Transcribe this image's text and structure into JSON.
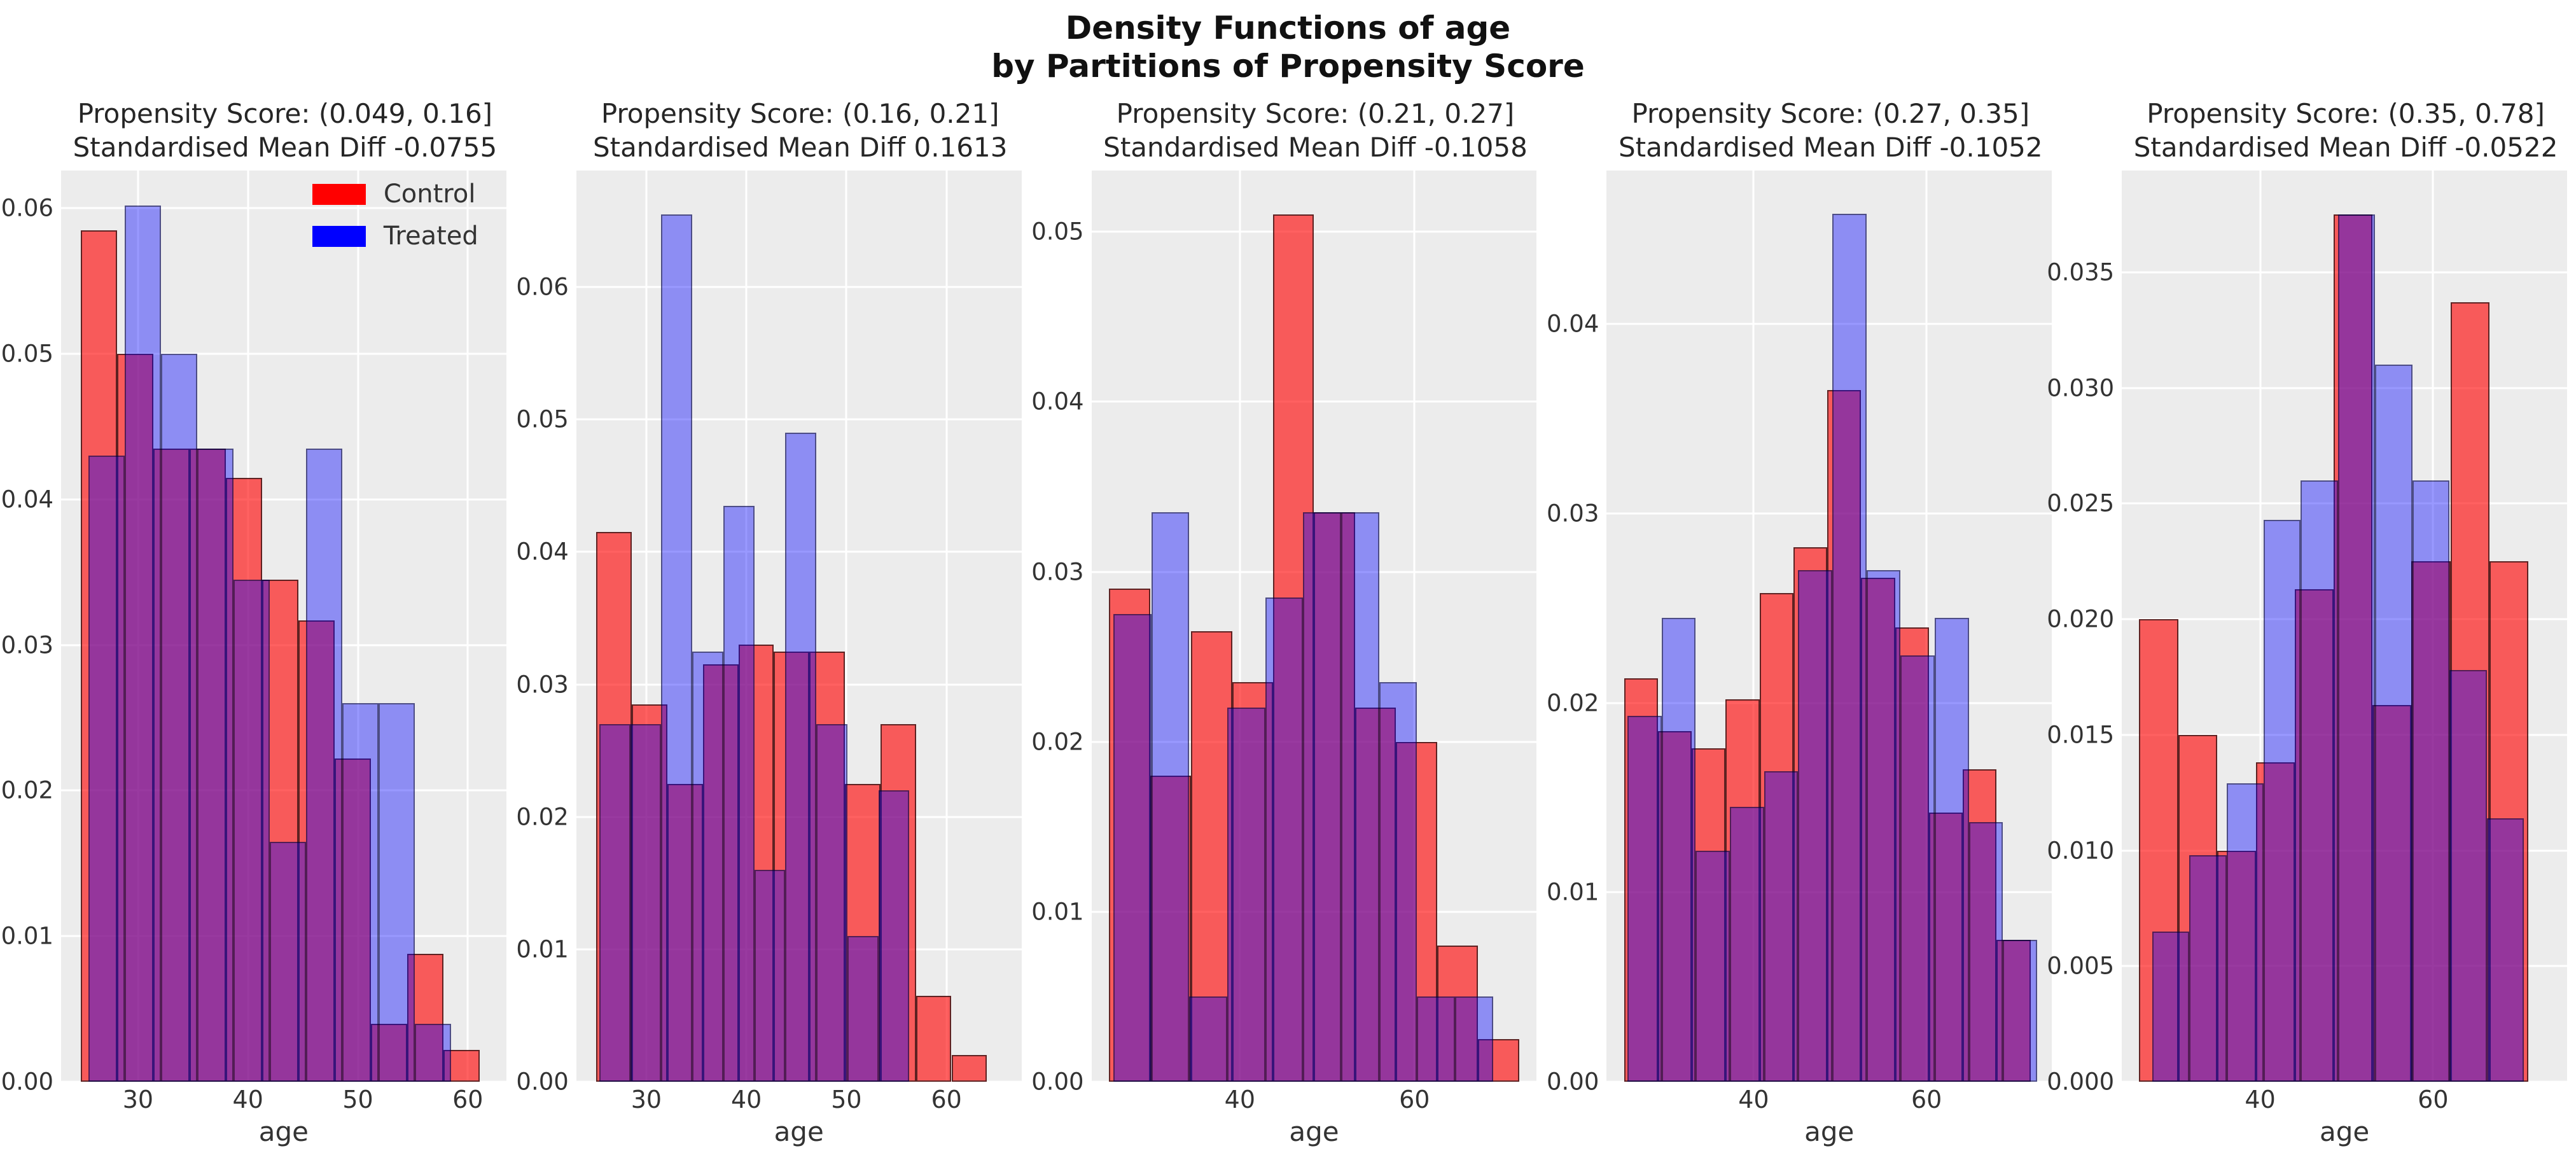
{
  "figure": {
    "suptitle_line1": "Density Functions of age",
    "suptitle_line2": "by Partitions of Propensity Score"
  },
  "legend": {
    "position": "upper-right-of-first-subplot",
    "items": [
      {
        "label": "Control",
        "color": "#ff0000"
      },
      {
        "label": "Treated",
        "color": "#0000ff"
      }
    ]
  },
  "colors": {
    "figure_background": "#ffffff",
    "axes_background": "#ececec",
    "gridline": "#ffffff",
    "control_fill": "rgba(255,0,0,0.62)",
    "treated_fill": "rgba(0,0,255,0.40)",
    "overlap_appearance": "#95369c",
    "text": "#333333"
  },
  "chart_data": [
    {
      "type": "bar",
      "subtype": "overlapping-histogram",
      "title_line1": "Propensity Score: (0.049, 0.16]",
      "title_line2": "Standardised Mean Diff -0.0755",
      "xlabel": "age",
      "xlim": [
        23,
        63.5
      ],
      "ylim": [
        0,
        0.0626
      ],
      "xticks": [
        30,
        40,
        50,
        60
      ],
      "xtick_labels": [
        "30",
        "40",
        "50",
        "60"
      ],
      "yticks": [
        0,
        0.01,
        0.02,
        0.03,
        0.04,
        0.05,
        0.06
      ],
      "ytick_labels": [
        "0.00",
        "0.01",
        "0.02",
        "0.03",
        "0.04",
        "0.05",
        "0.06"
      ],
      "grid": true,
      "series": [
        {
          "name": "Control",
          "bin_start": 24.8,
          "bin_width": 3.3,
          "values": [
            0.0585,
            0.05,
            0.0435,
            0.0435,
            0.0415,
            0.0345,
            0.0317,
            0.0222,
            0.004,
            0.0088,
            0.0022
          ]
        },
        {
          "name": "Treated",
          "bin_start": 25.5,
          "bin_width": 3.3,
          "values": [
            0.043,
            0.0602,
            0.05,
            0.0435,
            0.0345,
            0.0165,
            0.0435,
            0.026,
            0.026,
            0.004
          ]
        }
      ]
    },
    {
      "type": "bar",
      "subtype": "overlapping-histogram",
      "title_line1": "Propensity Score: (0.16, 0.21]",
      "title_line2": "Standardised Mean Diff 0.1613",
      "xlabel": "age",
      "xlim": [
        23,
        67.5
      ],
      "ylim": [
        0,
        0.0688
      ],
      "xticks": [
        30,
        40,
        50,
        60
      ],
      "xtick_labels": [
        "30",
        "40",
        "50",
        "60"
      ],
      "yticks": [
        0,
        0.01,
        0.02,
        0.03,
        0.04,
        0.05,
        0.06
      ],
      "ytick_labels": [
        "0.00",
        "0.01",
        "0.02",
        "0.03",
        "0.04",
        "0.05",
        "0.06"
      ],
      "grid": true,
      "series": [
        {
          "name": "Control",
          "bin_start": 25.0,
          "bin_width": 3.55,
          "values": [
            0.0415,
            0.0285,
            0.0225,
            0.0315,
            0.033,
            0.0325,
            0.0325,
            0.0225,
            0.027,
            0.0065,
            0.002
          ]
        },
        {
          "name": "Treated",
          "bin_start": 25.3,
          "bin_width": 3.1,
          "values": [
            0.027,
            0.027,
            0.0655,
            0.0325,
            0.0435,
            0.016,
            0.049,
            0.027,
            0.011,
            0.022
          ]
        }
      ]
    },
    {
      "type": "bar",
      "subtype": "overlapping-histogram",
      "title_line1": "Propensity Score: (0.21, 0.27]",
      "title_line2": "Standardised Mean Diff -0.1058",
      "xlabel": "age",
      "xlim": [
        23,
        74
      ],
      "ylim": [
        0,
        0.0536
      ],
      "xticks": [
        40,
        60
      ],
      "xtick_labels": [
        "40",
        "60"
      ],
      "yticks": [
        0,
        0.01,
        0.02,
        0.03,
        0.04,
        0.05
      ],
      "ytick_labels": [
        "0.00",
        "0.01",
        "0.02",
        "0.03",
        "0.04",
        "0.05"
      ],
      "grid": true,
      "series": [
        {
          "name": "Control",
          "bin_start": 25.0,
          "bin_width": 4.7,
          "values": [
            0.029,
            0.018,
            0.0265,
            0.0235,
            0.051,
            0.0335,
            0.022,
            0.02,
            0.008,
            0.0025
          ]
        },
        {
          "name": "Treated",
          "bin_start": 25.5,
          "bin_width": 4.35,
          "values": [
            0.0275,
            0.0335,
            0.005,
            0.022,
            0.0285,
            0.0335,
            0.0335,
            0.0235,
            0.005,
            0.005
          ]
        }
      ]
    },
    {
      "type": "bar",
      "subtype": "overlapping-histogram",
      "title_line1": "Propensity Score: (0.27, 0.35]",
      "title_line2": "Standardised Mean Diff -0.1052",
      "xlabel": "age",
      "xlim": [
        23,
        74.5
      ],
      "ylim": [
        0,
        0.0481
      ],
      "xticks": [
        40,
        60
      ],
      "xtick_labels": [
        "40",
        "60"
      ],
      "yticks": [
        0,
        0.01,
        0.02,
        0.03,
        0.04
      ],
      "ytick_labels": [
        "0.00",
        "0.01",
        "0.02",
        "0.03",
        "0.04"
      ],
      "grid": true,
      "series": [
        {
          "name": "Control",
          "bin_start": 25.0,
          "bin_width": 3.92,
          "values": [
            0.0213,
            0.0185,
            0.0176,
            0.0202,
            0.0258,
            0.0282,
            0.0365,
            0.0266,
            0.024,
            0.0142,
            0.0165,
            0.0075
          ]
        },
        {
          "name": "Treated",
          "bin_start": 25.4,
          "bin_width": 3.95,
          "values": [
            0.0193,
            0.0245,
            0.0122,
            0.0145,
            0.0164,
            0.027,
            0.0458,
            0.027,
            0.0225,
            0.0245,
            0.0137,
            0.0075
          ]
        }
      ]
    },
    {
      "type": "bar",
      "subtype": "overlapping-histogram",
      "title_line1": "Propensity Score: (0.35, 0.78]",
      "title_line2": "Standardised Mean Diff -0.0522",
      "xlabel": "age",
      "xlim": [
        24,
        75.5
      ],
      "ylim": [
        0,
        0.0394
      ],
      "xticks": [
        40,
        60
      ],
      "xtick_labels": [
        "40",
        "60"
      ],
      "yticks": [
        0,
        0.005,
        0.01,
        0.015,
        0.02,
        0.025,
        0.03,
        0.035
      ],
      "ytick_labels": [
        "0.000",
        "0.005",
        "0.010",
        "0.015",
        "0.020",
        "0.025",
        "0.030",
        "0.035"
      ],
      "grid": true,
      "series": [
        {
          "name": "Control",
          "bin_start": 26.0,
          "bin_width": 4.5,
          "values": [
            0.02,
            0.015,
            0.01,
            0.0138,
            0.0213,
            0.0375,
            0.0163,
            0.0225,
            0.0337,
            0.0225
          ]
        },
        {
          "name": "Treated",
          "bin_start": 27.5,
          "bin_width": 4.3,
          "values": [
            0.0065,
            0.0098,
            0.0129,
            0.0243,
            0.026,
            0.0375,
            0.031,
            0.026,
            0.0178,
            0.0114
          ]
        }
      ]
    }
  ]
}
